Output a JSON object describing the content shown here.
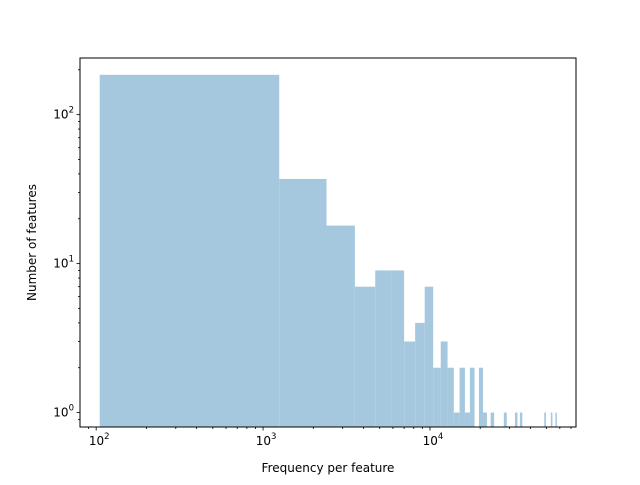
{
  "chart_data": {
    "type": "bar",
    "title": "",
    "xlabel": "Frequency per feature",
    "ylabel": "Number of features",
    "xscale": "log",
    "yscale": "log",
    "xlim": [
      80,
      75000
    ],
    "ylim": [
      0.8,
      240
    ],
    "grid": false,
    "bar_color": "#a6c8df",
    "x_ticks": [
      {
        "base": "10",
        "exp": "2",
        "value": 100
      },
      {
        "base": "10",
        "exp": "3",
        "value": 1000
      },
      {
        "base": "10",
        "exp": "4",
        "value": 10000
      }
    ],
    "y_ticks": [
      {
        "base": "10",
        "exp": "0",
        "value": 1
      },
      {
        "base": "10",
        "exp": "1",
        "value": 10
      },
      {
        "base": "10",
        "exp": "2",
        "value": 100
      }
    ],
    "bins": [
      {
        "x0": 105,
        "x1": 1250,
        "count": 185
      },
      {
        "x0": 1250,
        "x1": 2400,
        "count": 37
      },
      {
        "x0": 2400,
        "x1": 3550,
        "count": 18
      },
      {
        "x0": 3550,
        "x1": 4700,
        "count": 7
      },
      {
        "x0": 4700,
        "x1": 5850,
        "count": 9
      },
      {
        "x0": 5850,
        "x1": 7000,
        "count": 9
      },
      {
        "x0": 7000,
        "x1": 8150,
        "count": 3
      },
      {
        "x0": 8150,
        "x1": 9300,
        "count": 4
      },
      {
        "x0": 9300,
        "x1": 10450,
        "count": 7
      },
      {
        "x0": 10450,
        "x1": 11600,
        "count": 2
      },
      {
        "x0": 11600,
        "x1": 12750,
        "count": 3
      },
      {
        "x0": 12750,
        "x1": 13900,
        "count": 2
      },
      {
        "x0": 13900,
        "x1": 15050,
        "count": 1
      },
      {
        "x0": 15050,
        "x1": 16200,
        "count": 2
      },
      {
        "x0": 16200,
        "x1": 17350,
        "count": 1
      },
      {
        "x0": 17350,
        "x1": 18500,
        "count": 2
      },
      {
        "x0": 19650,
        "x1": 20800,
        "count": 2
      },
      {
        "x0": 20800,
        "x1": 21950,
        "count": 1
      },
      {
        "x0": 23100,
        "x1": 24250,
        "count": 1
      },
      {
        "x0": 27700,
        "x1": 28850,
        "count": 1
      },
      {
        "x0": 32300,
        "x1": 33450,
        "count": 1
      },
      {
        "x0": 34600,
        "x1": 35750,
        "count": 1
      },
      {
        "x0": 48400,
        "x1": 49550,
        "count": 1
      },
      {
        "x0": 53000,
        "x1": 54150,
        "count": 1
      },
      {
        "x0": 56450,
        "x1": 57600,
        "count": 1
      }
    ]
  }
}
